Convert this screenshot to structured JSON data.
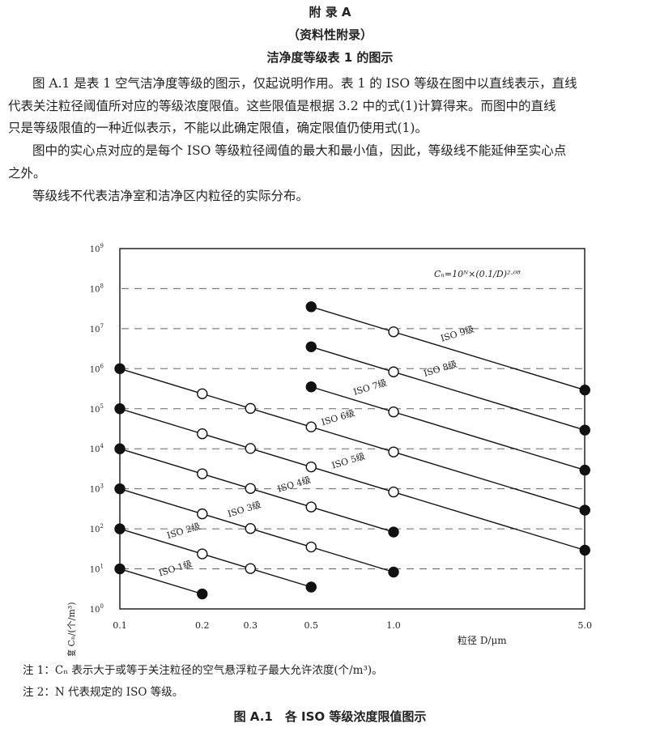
{
  "header": {
    "appendix": "附 录 A",
    "subtitle": "（资料性附录）",
    "title": "洁净度等级表 1 的图示"
  },
  "body": {
    "paragraphs": [
      [
        "图 A.1 是表 1 空气洁净度等级的图示，仅起说明作用。表 1 的 ISO 等级在图中以直线表示，直线",
        "代表关注粒径阈值所对应的等级浓度限值。这些限值是根据 3.2 中的式(1)计算得来。而图中的直线",
        "只是等级限值的一种近似表示，不能以此确定限值，确定限值仍使用式(1)。"
      ],
      [
        "图中的实心点对应的是每个 ISO 等级粒径阈值的最大和最小值，因此，等级线不能延伸至实心点",
        "之外。"
      ],
      [
        "等级线不代表洁净室和洁净区内粒径的实际分布。"
      ]
    ]
  },
  "chart_data": {
    "type": "line",
    "title": "",
    "formula": "Cₙ=10ᴺ×(0.1/D)²·⁰⁸",
    "xlabel": "粒径 D/μm",
    "ylabel": "空气悬浮粒子浓度 Cₙ/(个/m³)",
    "xscale": "log",
    "yscale": "log",
    "xlim": [
      0.1,
      5.0
    ],
    "ylim": [
      1,
      1000000000
    ],
    "x_ticks": [
      0.1,
      0.2,
      0.3,
      0.5,
      1.0,
      5.0
    ],
    "x_tick_labels": [
      "0.1",
      "0.2",
      "0.3",
      "0.5",
      "1.0",
      "5.0"
    ],
    "y_tick_exponents": [
      0,
      1,
      2,
      3,
      4,
      5,
      6,
      7,
      8,
      9
    ],
    "y_tick_base": "10",
    "grid": "horizontal dashed",
    "series": [
      {
        "name": "ISO 1级",
        "N": 1,
        "x": [
          0.1,
          0.2
        ],
        "filled": [
          true,
          true
        ]
      },
      {
        "name": "ISO 2级",
        "N": 2,
        "x": [
          0.1,
          0.2,
          0.3,
          0.5
        ],
        "filled": [
          true,
          false,
          false,
          true
        ]
      },
      {
        "name": "ISO 3级",
        "N": 3,
        "x": [
          0.1,
          0.2,
          0.3,
          0.5,
          1.0
        ],
        "filled": [
          true,
          false,
          false,
          false,
          true
        ]
      },
      {
        "name": "ISO 4级",
        "N": 4,
        "x": [
          0.1,
          0.2,
          0.3,
          0.5,
          1.0
        ],
        "filled": [
          true,
          false,
          false,
          false,
          true
        ]
      },
      {
        "name": "ISO 5级",
        "N": 5,
        "x": [
          0.1,
          0.2,
          0.3,
          0.5,
          1.0,
          5.0
        ],
        "filled": [
          true,
          false,
          false,
          false,
          false,
          true
        ]
      },
      {
        "name": "ISO 6级",
        "N": 6,
        "x": [
          0.1,
          0.2,
          0.3,
          0.5,
          1.0,
          5.0
        ],
        "filled": [
          true,
          false,
          false,
          false,
          false,
          true
        ]
      },
      {
        "name": "ISO 7级",
        "N": 7,
        "x": [
          0.5,
          1.0,
          5.0
        ],
        "filled": [
          true,
          false,
          true
        ]
      },
      {
        "name": "ISO 8级",
        "N": 8,
        "x": [
          0.5,
          1.0,
          5.0
        ],
        "filled": [
          true,
          false,
          true
        ]
      },
      {
        "name": "ISO 9级",
        "N": 9,
        "x": [
          0.5,
          1.0,
          5.0
        ],
        "filled": [
          true,
          false,
          true
        ]
      }
    ]
  },
  "notes": [
    "注 1：Cₙ 表示大于或等于关注粒径的空气悬浮粒子最大允许浓度(个/m³)。",
    "注 2：N 代表规定的 ISO 等级。"
  ],
  "caption": "图 A.1　各 ISO 等级浓度限值图示"
}
